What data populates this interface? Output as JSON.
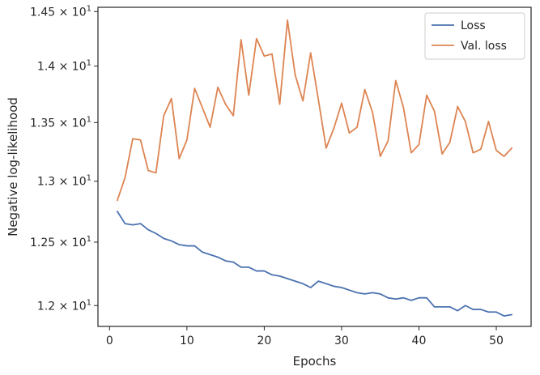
{
  "chart_data": {
    "type": "line",
    "xlabel": "Epochs",
    "ylabel": "Negative log-likelihood",
    "yscale": "log",
    "xlim": [
      -1.5,
      54.5
    ],
    "ylim": [
      11.84,
      14.54
    ],
    "grid": false,
    "legend_position": "top-right",
    "x_ticks": [
      0,
      10,
      20,
      30,
      40,
      50
    ],
    "x_tick_labels": [
      "0",
      "10",
      "20",
      "30",
      "40",
      "50"
    ],
    "y_ticks": [
      12.0,
      12.5,
      13.0,
      13.5,
      14.0,
      14.5
    ],
    "y_tick_labels": [
      {
        "mant": "1.2",
        "exp": "1"
      },
      {
        "mant": "1.25",
        "exp": "1"
      },
      {
        "mant": "1.3",
        "exp": "1"
      },
      {
        "mant": "1.35",
        "exp": "1"
      },
      {
        "mant": "1.4",
        "exp": "1"
      },
      {
        "mant": "1.45",
        "exp": "1"
      }
    ],
    "x": [
      1,
      2,
      3,
      4,
      5,
      6,
      7,
      8,
      9,
      10,
      11,
      12,
      13,
      14,
      15,
      16,
      17,
      18,
      19,
      20,
      21,
      22,
      23,
      24,
      25,
      26,
      27,
      28,
      29,
      30,
      31,
      32,
      33,
      34,
      35,
      36,
      37,
      38,
      39,
      40,
      41,
      42,
      43,
      44,
      45,
      46,
      47,
      48,
      49,
      50,
      51,
      52
    ],
    "series": [
      {
        "name": "Loss",
        "color": "#4c72b0",
        "values": [
          12.75,
          12.65,
          12.64,
          12.65,
          12.6,
          12.57,
          12.53,
          12.51,
          12.48,
          12.47,
          12.47,
          12.42,
          12.4,
          12.38,
          12.35,
          12.34,
          12.3,
          12.3,
          12.27,
          12.27,
          12.24,
          12.23,
          12.21,
          12.19,
          12.17,
          12.14,
          12.19,
          12.17,
          12.15,
          12.14,
          12.12,
          12.1,
          12.09,
          12.1,
          12.09,
          12.06,
          12.05,
          12.06,
          12.04,
          12.06,
          12.06,
          11.99,
          11.99,
          11.99,
          11.96,
          12.0,
          11.97,
          11.97,
          11.95,
          11.95,
          11.92,
          11.93
        ]
      },
      {
        "name": "Val. loss",
        "color": "#dd8452",
        "values": [
          12.84,
          13.03,
          13.36,
          13.35,
          13.09,
          13.07,
          13.56,
          13.71,
          13.19,
          13.35,
          13.8,
          13.63,
          13.46,
          13.81,
          13.66,
          13.56,
          14.24,
          13.74,
          14.25,
          14.09,
          14.11,
          13.66,
          14.42,
          13.92,
          13.69,
          14.12,
          13.7,
          13.28,
          13.45,
          13.67,
          13.41,
          13.46,
          13.79,
          13.59,
          13.21,
          13.34,
          13.87,
          13.63,
          13.24,
          13.31,
          13.74,
          13.6,
          13.23,
          13.33,
          13.64,
          13.51,
          13.24,
          13.27,
          13.51,
          13.26,
          13.21,
          13.28
        ]
      }
    ]
  }
}
